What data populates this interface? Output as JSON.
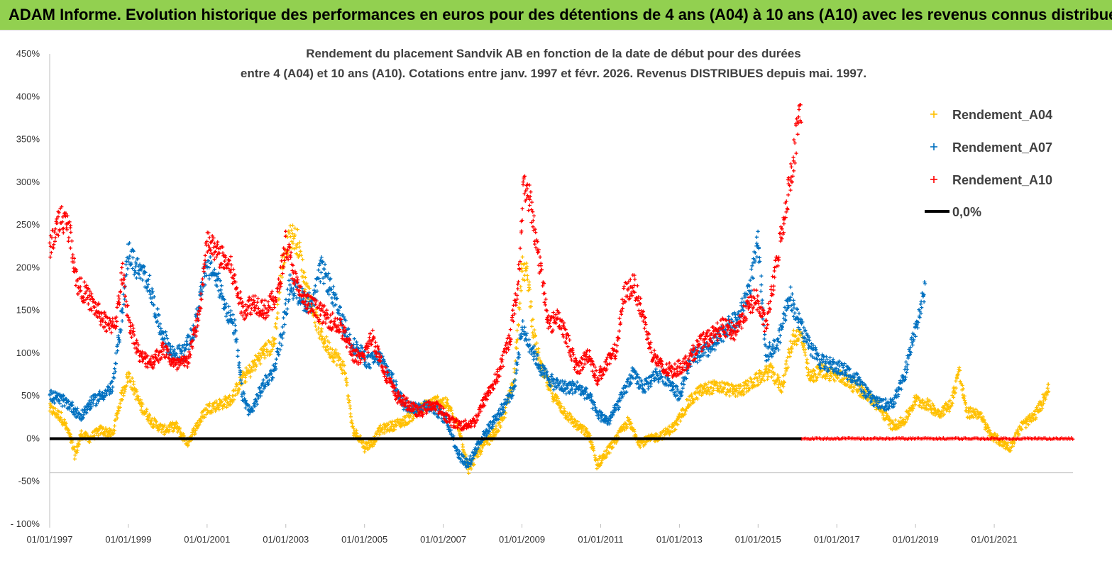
{
  "banner": {
    "title": "ADAM Informe. Evolution historique des performances en euros pour des détentions de 4 ans (A04) à 10 ans (A10) avec les revenus connus distribués"
  },
  "colors": {
    "banner_bg": "#92d050",
    "A04": "#ffc000",
    "A07": "#0070c0",
    "A10": "#ff0000",
    "zero_line": "#000000"
  },
  "chart_data": {
    "type": "scatter",
    "title": [
      "Rendement du placement Sandvik AB en fonction de la date de début pour des durées",
      "entre 4 (A04) et 10 ans (A10).  Cotations entre janv. 1997 et févr. 2026. Revenus DISTRIBUES depuis mai. 1997."
    ],
    "xlabel": "",
    "ylabel": "",
    "x_range": [
      1997.0,
      2023.0
    ],
    "ylim": [
      -100,
      450
    ],
    "x_ticks": [
      {
        "x": 1997,
        "label": "01/01/1997"
      },
      {
        "x": 1999,
        "label": "01/01/1999"
      },
      {
        "x": 2001,
        "label": "01/01/2001"
      },
      {
        "x": 2003,
        "label": "01/01/2003"
      },
      {
        "x": 2005,
        "label": "01/01/2005"
      },
      {
        "x": 2007,
        "label": "01/01/2007"
      },
      {
        "x": 2009,
        "label": "01/01/2009"
      },
      {
        "x": 2011,
        "label": "01/01/2011"
      },
      {
        "x": 2013,
        "label": "01/01/2013"
      },
      {
        "x": 2015,
        "label": "01/01/2015"
      },
      {
        "x": 2017,
        "label": "01/01/2017"
      },
      {
        "x": 2019,
        "label": "01/01/2019"
      },
      {
        "x": 2021,
        "label": "01/01/2021"
      }
    ],
    "y_ticks": [
      {
        "y": 450,
        "label": "450%"
      },
      {
        "y": 400,
        "label": "400%"
      },
      {
        "y": 350,
        "label": "350%"
      },
      {
        "y": 300,
        "label": "300%"
      },
      {
        "y": 250,
        "label": "250%"
      },
      {
        "y": 200,
        "label": "200%"
      },
      {
        "y": 150,
        "label": "150%"
      },
      {
        "y": 100,
        "label": "100%"
      },
      {
        "y": 50,
        "label": "50%"
      },
      {
        "y": 0,
        "label": "0%"
      },
      {
        "y": -50,
        "label": "-50%"
      },
      {
        "y": -100,
        "label": "- 100%"
      }
    ],
    "gridlines": [
      0,
      -40
    ],
    "legend": {
      "position": "top-right",
      "entries": [
        {
          "series": "A04",
          "label": "Rendement_A04",
          "marker": "+"
        },
        {
          "series": "A07",
          "label": "Rendement_A07",
          "marker": "+"
        },
        {
          "series": "A10",
          "label": "Rendement_A10",
          "marker": "+"
        },
        {
          "series": "zero",
          "label": "0,0%",
          "marker": "line"
        }
      ]
    },
    "series": [
      {
        "name": "Rendement_A04",
        "key": "A04",
        "color": "#ffc000",
        "x_end": 2022.4,
        "points": [
          [
            1997.0,
            35
          ],
          [
            1997.3,
            25
          ],
          [
            1997.5,
            5
          ],
          [
            1997.65,
            -20
          ],
          [
            1997.8,
            5
          ],
          [
            1998.0,
            0
          ],
          [
            1998.3,
            10
          ],
          [
            1998.6,
            5
          ],
          [
            1998.8,
            45
          ],
          [
            1999.0,
            75
          ],
          [
            1999.3,
            40
          ],
          [
            1999.6,
            20
          ],
          [
            1999.9,
            10
          ],
          [
            2000.2,
            15
          ],
          [
            2000.5,
            -5
          ],
          [
            2000.8,
            20
          ],
          [
            2001.0,
            35
          ],
          [
            2001.3,
            40
          ],
          [
            2001.6,
            45
          ],
          [
            2001.9,
            70
          ],
          [
            2002.1,
            80
          ],
          [
            2002.4,
            100
          ],
          [
            2002.7,
            110
          ],
          [
            2002.9,
            200
          ],
          [
            2003.1,
            240
          ],
          [
            2003.3,
            230
          ],
          [
            2003.5,
            180
          ],
          [
            2003.7,
            150
          ],
          [
            2003.9,
            120
          ],
          [
            2004.1,
            105
          ],
          [
            2004.3,
            95
          ],
          [
            2004.5,
            80
          ],
          [
            2004.7,
            10
          ],
          [
            2004.9,
            0
          ],
          [
            2005.0,
            -10
          ],
          [
            2005.2,
            -5
          ],
          [
            2005.4,
            10
          ],
          [
            2005.7,
            15
          ],
          [
            2006.0,
            20
          ],
          [
            2006.3,
            30
          ],
          [
            2006.6,
            40
          ],
          [
            2006.9,
            45
          ],
          [
            2007.1,
            40
          ],
          [
            2007.4,
            10
          ],
          [
            2007.65,
            -35
          ],
          [
            2007.9,
            -15
          ],
          [
            2008.2,
            0
          ],
          [
            2008.5,
            20
          ],
          [
            2008.8,
            70
          ],
          [
            2009.0,
            200
          ],
          [
            2009.15,
            190
          ],
          [
            2009.3,
            120
          ],
          [
            2009.5,
            80
          ],
          [
            2009.8,
            50
          ],
          [
            2010.1,
            30
          ],
          [
            2010.4,
            15
          ],
          [
            2010.7,
            5
          ],
          [
            2010.9,
            -30
          ],
          [
            2011.1,
            -20
          ],
          [
            2011.4,
            0
          ],
          [
            2011.7,
            20
          ],
          [
            2012.0,
            -5
          ],
          [
            2012.3,
            0
          ],
          [
            2012.6,
            5
          ],
          [
            2012.9,
            15
          ],
          [
            2013.2,
            40
          ],
          [
            2013.5,
            55
          ],
          [
            2013.8,
            60
          ],
          [
            2014.1,
            60
          ],
          [
            2014.4,
            55
          ],
          [
            2014.7,
            60
          ],
          [
            2015.0,
            70
          ],
          [
            2015.3,
            80
          ],
          [
            2015.6,
            60
          ],
          [
            2015.9,
            120
          ],
          [
            2016.1,
            120
          ],
          [
            2016.3,
            70
          ],
          [
            2016.6,
            80
          ],
          [
            2016.9,
            75
          ],
          [
            2017.2,
            70
          ],
          [
            2017.5,
            60
          ],
          [
            2017.8,
            50
          ],
          [
            2018.1,
            35
          ],
          [
            2018.4,
            15
          ],
          [
            2018.7,
            20
          ],
          [
            2019.0,
            45
          ],
          [
            2019.3,
            40
          ],
          [
            2019.6,
            30
          ],
          [
            2019.9,
            40
          ],
          [
            2020.1,
            80
          ],
          [
            2020.3,
            30
          ],
          [
            2020.6,
            30
          ],
          [
            2020.9,
            5
          ],
          [
            2021.2,
            -5
          ],
          [
            2021.4,
            -10
          ],
          [
            2021.7,
            15
          ],
          [
            2022.0,
            25
          ],
          [
            2022.2,
            40
          ],
          [
            2022.4,
            65
          ]
        ]
      },
      {
        "name": "Rendement_A07",
        "key": "A07",
        "color": "#0070c0",
        "x_end": 2019.25,
        "points": [
          [
            1997.0,
            50
          ],
          [
            1997.3,
            45
          ],
          [
            1997.5,
            40
          ],
          [
            1997.8,
            25
          ],
          [
            1998.0,
            40
          ],
          [
            1998.3,
            50
          ],
          [
            1998.6,
            60
          ],
          [
            1998.85,
            150
          ],
          [
            1999.0,
            220
          ],
          [
            1999.2,
            200
          ],
          [
            1999.5,
            185
          ],
          [
            1999.8,
            130
          ],
          [
            2000.1,
            100
          ],
          [
            2000.4,
            100
          ],
          [
            2000.7,
            130
          ],
          [
            2000.9,
            190
          ],
          [
            2001.1,
            200
          ],
          [
            2001.3,
            180
          ],
          [
            2001.5,
            150
          ],
          [
            2001.7,
            130
          ],
          [
            2001.9,
            50
          ],
          [
            2002.1,
            30
          ],
          [
            2002.4,
            60
          ],
          [
            2002.7,
            80
          ],
          [
            2002.9,
            120
          ],
          [
            2003.1,
            180
          ],
          [
            2003.3,
            170
          ],
          [
            2003.5,
            160
          ],
          [
            2003.7,
            160
          ],
          [
            2003.9,
            200
          ],
          [
            2004.1,
            180
          ],
          [
            2004.4,
            140
          ],
          [
            2004.7,
            110
          ],
          [
            2004.9,
            100
          ],
          [
            2005.1,
            90
          ],
          [
            2005.4,
            95
          ],
          [
            2005.7,
            70
          ],
          [
            2006.0,
            40
          ],
          [
            2006.3,
            35
          ],
          [
            2006.6,
            40
          ],
          [
            2006.9,
            30
          ],
          [
            2007.1,
            20
          ],
          [
            2007.4,
            -20
          ],
          [
            2007.65,
            -30
          ],
          [
            2007.9,
            -5
          ],
          [
            2008.2,
            15
          ],
          [
            2008.5,
            35
          ],
          [
            2008.8,
            60
          ],
          [
            2009.0,
            130
          ],
          [
            2009.2,
            110
          ],
          [
            2009.5,
            80
          ],
          [
            2009.8,
            65
          ],
          [
            2010.1,
            60
          ],
          [
            2010.4,
            60
          ],
          [
            2010.7,
            50
          ],
          [
            2010.9,
            30
          ],
          [
            2011.2,
            20
          ],
          [
            2011.5,
            45
          ],
          [
            2011.8,
            75
          ],
          [
            2012.1,
            60
          ],
          [
            2012.4,
            75
          ],
          [
            2012.7,
            70
          ],
          [
            2013.0,
            50
          ],
          [
            2013.3,
            95
          ],
          [
            2013.6,
            100
          ],
          [
            2013.9,
            110
          ],
          [
            2014.2,
            130
          ],
          [
            2014.5,
            140
          ],
          [
            2014.8,
            180
          ],
          [
            2015.0,
            230
          ],
          [
            2015.2,
            100
          ],
          [
            2015.5,
            110
          ],
          [
            2015.8,
            170
          ],
          [
            2016.0,
            140
          ],
          [
            2016.3,
            110
          ],
          [
            2016.6,
            90
          ],
          [
            2016.9,
            85
          ],
          [
            2017.2,
            80
          ],
          [
            2017.5,
            70
          ],
          [
            2017.8,
            50
          ],
          [
            2018.1,
            40
          ],
          [
            2018.4,
            40
          ],
          [
            2018.7,
            70
          ],
          [
            2018.95,
            120
          ],
          [
            2019.25,
            175
          ]
        ]
      },
      {
        "name": "Rendement_A10",
        "key": "A10",
        "color": "#ff0000",
        "x_end": 2016.1,
        "points": [
          [
            1997.0,
            225
          ],
          [
            1997.3,
            260
          ],
          [
            1997.5,
            245
          ],
          [
            1997.7,
            180
          ],
          [
            1997.9,
            170
          ],
          [
            1998.2,
            150
          ],
          [
            1998.5,
            130
          ],
          [
            1998.7,
            140
          ],
          [
            1998.85,
            195
          ],
          [
            1999.0,
            140
          ],
          [
            1999.3,
            95
          ],
          [
            1999.6,
            90
          ],
          [
            1999.9,
            105
          ],
          [
            2000.2,
            85
          ],
          [
            2000.5,
            90
          ],
          [
            2000.8,
            145
          ],
          [
            2001.0,
            230
          ],
          [
            2001.3,
            215
          ],
          [
            2001.6,
            200
          ],
          [
            2001.9,
            150
          ],
          [
            2002.2,
            160
          ],
          [
            2002.5,
            150
          ],
          [
            2002.8,
            170
          ],
          [
            2003.0,
            230
          ],
          [
            2003.3,
            175
          ],
          [
            2003.5,
            160
          ],
          [
            2003.8,
            150
          ],
          [
            2004.1,
            140
          ],
          [
            2004.4,
            130
          ],
          [
            2004.7,
            100
          ],
          [
            2004.9,
            90
          ],
          [
            2005.2,
            120
          ],
          [
            2005.5,
            80
          ],
          [
            2005.8,
            50
          ],
          [
            2006.1,
            40
          ],
          [
            2006.4,
            30
          ],
          [
            2006.7,
            40
          ],
          [
            2006.9,
            35
          ],
          [
            2007.2,
            20
          ],
          [
            2007.5,
            15
          ],
          [
            2007.8,
            20
          ],
          [
            2008.1,
            50
          ],
          [
            2008.4,
            75
          ],
          [
            2008.7,
            120
          ],
          [
            2008.9,
            180
          ],
          [
            2009.05,
            300
          ],
          [
            2009.2,
            280
          ],
          [
            2009.4,
            220
          ],
          [
            2009.7,
            130
          ],
          [
            2009.9,
            145
          ],
          [
            2010.2,
            110
          ],
          [
            2010.4,
            80
          ],
          [
            2010.7,
            100
          ],
          [
            2010.9,
            70
          ],
          [
            2011.2,
            90
          ],
          [
            2011.4,
            105
          ],
          [
            2011.6,
            170
          ],
          [
            2011.85,
            180
          ],
          [
            2012.1,
            140
          ],
          [
            2012.3,
            100
          ],
          [
            2012.6,
            80
          ],
          [
            2012.9,
            80
          ],
          [
            2013.2,
            90
          ],
          [
            2013.5,
            110
          ],
          [
            2013.8,
            120
          ],
          [
            2014.1,
            130
          ],
          [
            2014.4,
            125
          ],
          [
            2014.7,
            150
          ],
          [
            2014.95,
            165
          ],
          [
            2015.2,
            130
          ],
          [
            2015.45,
            200
          ],
          [
            2015.7,
            270
          ],
          [
            2015.9,
            330
          ],
          [
            2016.05,
            380
          ]
        ]
      }
    ],
    "zero_band": {
      "series": "A10",
      "from": 2016.1,
      "to": 2023.0,
      "value": 0
    }
  }
}
